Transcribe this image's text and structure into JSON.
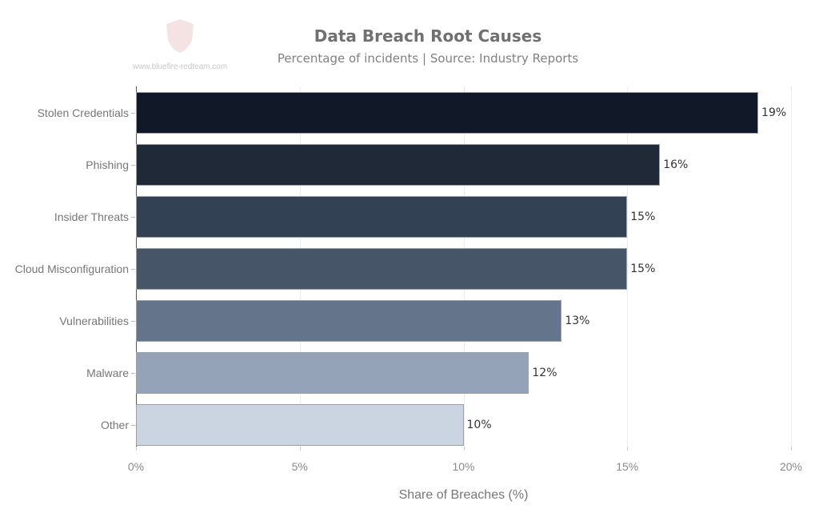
{
  "watermark": {
    "text": "www.bluefire-redteam.com",
    "icon": "shield-logo-icon"
  },
  "chart_data": {
    "type": "bar",
    "orientation": "horizontal",
    "title": "Data Breach Root Causes",
    "subtitle": "Percentage of incidents | Source: Industry Reports",
    "xlabel": "Share of Breaches (%)",
    "ylabel": "",
    "categories": [
      "Stolen Credentials",
      "Phishing",
      "Insider Threats",
      "Cloud Misconfiguration",
      "Vulnerabilities",
      "Malware",
      "Other"
    ],
    "values": [
      19,
      16,
      15,
      15,
      13,
      12,
      10
    ],
    "value_labels": [
      "19%",
      "16%",
      "15%",
      "15%",
      "13%",
      "12%",
      "10%"
    ],
    "colors": [
      "#111827",
      "#1f2937",
      "#334155",
      "#475569",
      "#64748b",
      "#94a3b8",
      "#cbd5e1"
    ],
    "xlim": [
      0,
      20
    ],
    "xticks": [
      0,
      5,
      10,
      15,
      20
    ],
    "xtick_labels": [
      "0%",
      "5%",
      "10%",
      "15%",
      "20%"
    ],
    "grid": {
      "vertical": true,
      "horizontal": false
    },
    "legend": null
  }
}
